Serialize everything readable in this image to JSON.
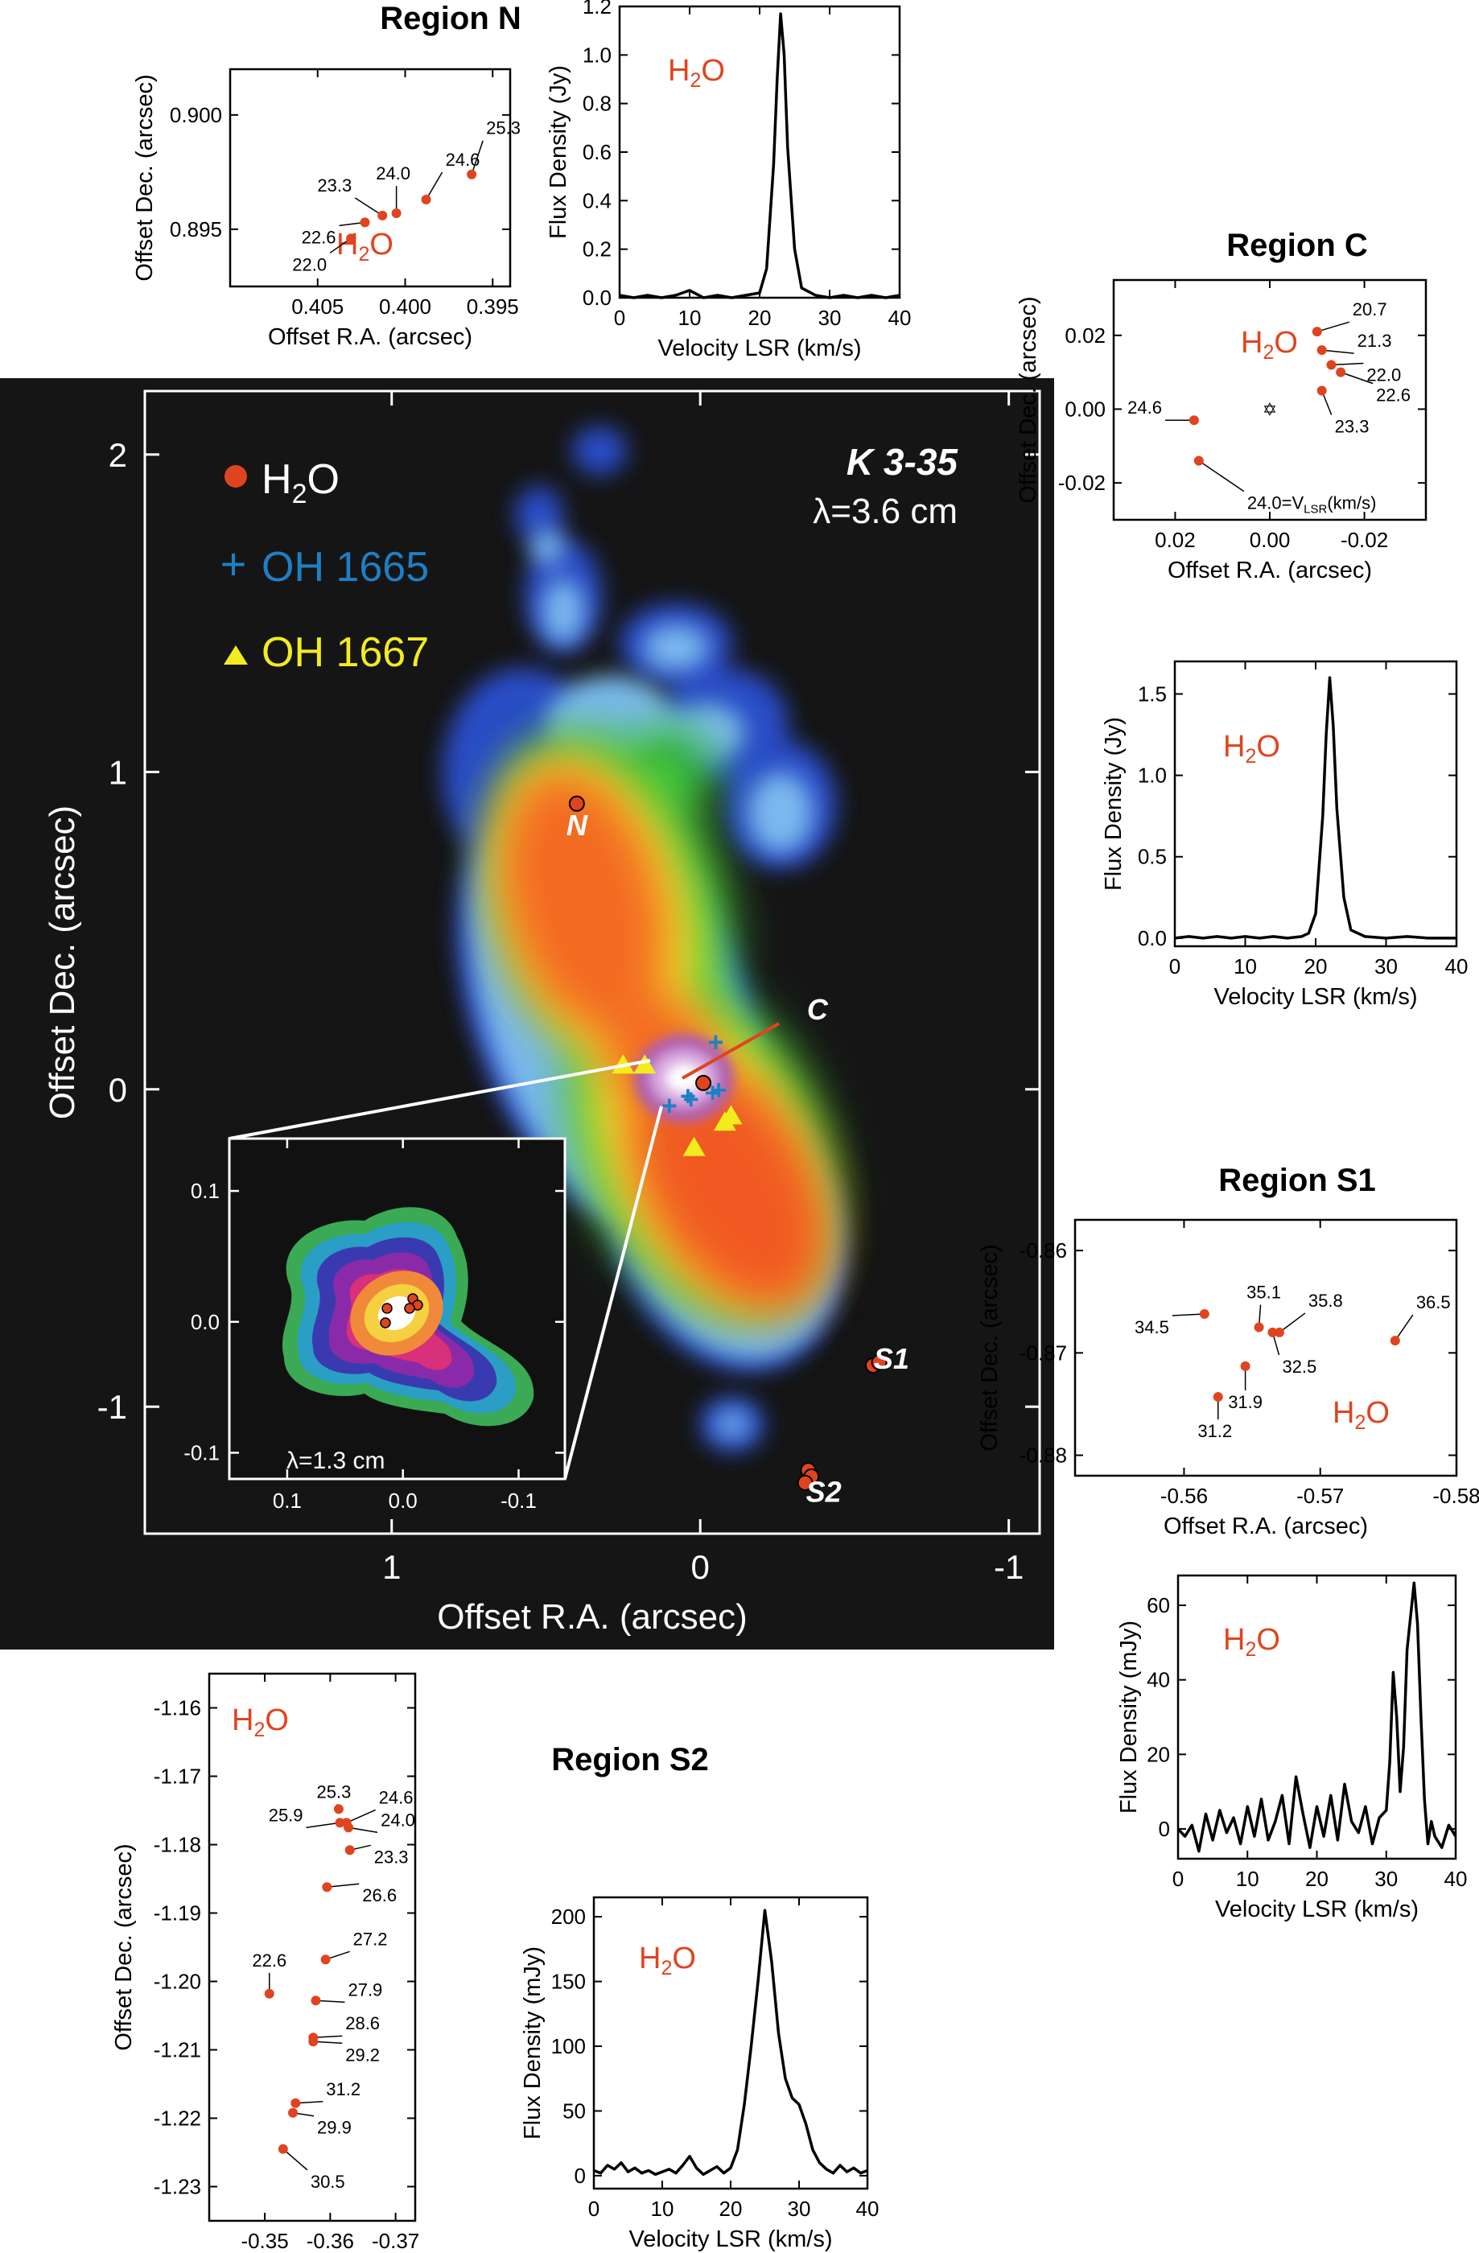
{
  "panels": {
    "region_n_title": "Region N",
    "region_c_title": "Region C",
    "region_s1_title": "Region S1",
    "region_s2_title": "Region S2"
  },
  "main_map": {
    "source_name": "K 3-35",
    "wavelength": "λ=3.6 cm",
    "xlabel": "Offset R.A. (arcsec)",
    "ylabel": "Offset Dec. (arcsec)",
    "xlim": [
      1.8,
      -1.1
    ],
    "ylim": [
      -1.4,
      2.2
    ],
    "xticks": [
      "1",
      "0",
      "-1"
    ],
    "yticks": [
      "2",
      "1",
      "0",
      "-1"
    ],
    "legend": [
      {
        "label": "H2O",
        "marker": "circle",
        "color": "#e0441f"
      },
      {
        "label": "OH 1665",
        "marker": "plus",
        "color": "#1f7fc4"
      },
      {
        "label": "OH 1667",
        "marker": "triangle",
        "color": "#f2ec1f"
      }
    ],
    "region_labels": [
      {
        "label": "N",
        "x": 0.4,
        "y": 0.8
      },
      {
        "label": "C",
        "x": -0.38,
        "y": 0.22
      },
      {
        "label": "S1",
        "x": -0.62,
        "y": -0.88
      },
      {
        "label": "S2",
        "x": -0.4,
        "y": -1.3
      }
    ],
    "h2o_points": [
      {
        "region": "N",
        "x": 0.4,
        "y": 0.9
      },
      {
        "region": "C",
        "x": -0.01,
        "y": 0.02
      },
      {
        "region": "S1",
        "x": -0.56,
        "y": -0.87
      },
      {
        "region": "S1",
        "x": -0.58,
        "y": -0.86
      },
      {
        "region": "S2",
        "x": -0.35,
        "y": -1.2
      },
      {
        "region": "S2",
        "x": -0.36,
        "y": -1.22
      },
      {
        "region": "S2",
        "x": -0.34,
        "y": -1.24
      }
    ],
    "oh1665_points": [
      [
        -0.05,
        0.15
      ],
      [
        0.1,
        -0.05
      ],
      [
        -0.04,
        -0.01
      ],
      [
        -0.06,
        0.0
      ],
      [
        0.04,
        -0.02
      ],
      [
        0.03,
        -0.03
      ]
    ],
    "oh1667_points": [
      [
        0.25,
        0.08
      ],
      [
        0.18,
        0.08
      ],
      [
        0.02,
        -0.18
      ],
      [
        -0.08,
        -0.1
      ],
      [
        -0.1,
        -0.08
      ]
    ],
    "inset": {
      "wavelength": "λ=1.3 cm",
      "xlim": [
        0.15,
        -0.14
      ],
      "ylim": [
        -0.12,
        0.14
      ],
      "xticks": [
        "0.1",
        "0.0",
        "-0.1"
      ],
      "yticks": [
        "0.1",
        "0.0",
        "-0.1"
      ]
    }
  },
  "chart_data": [
    {
      "type": "scatter",
      "id": "region-n-positions",
      "title": "Region N",
      "xlabel": "Offset R.A. (arcsec)",
      "ylabel": "Offset Dec. (arcsec)",
      "annotation": "H2O",
      "xlim": [
        0.41,
        0.394
      ],
      "ylim": [
        0.8925,
        0.902
      ],
      "xticks": [
        0.405,
        0.4,
        0.395
      ],
      "xtick_labels": [
        "0.405",
        "0.400",
        "0.395"
      ],
      "yticks": [
        0.895,
        0.9
      ],
      "ytick_labels": [
        "0.895",
        "0.900"
      ],
      "points": [
        {
          "x": 0.4031,
          "y": 0.8946,
          "label": "22.0"
        },
        {
          "x": 0.4023,
          "y": 0.8953,
          "label": "22.6"
        },
        {
          "x": 0.4013,
          "y": 0.8956,
          "label": "23.3"
        },
        {
          "x": 0.4005,
          "y": 0.8957,
          "label": "24.0"
        },
        {
          "x": 0.3988,
          "y": 0.8963,
          "label": "24.6"
        },
        {
          "x": 0.3962,
          "y": 0.8974,
          "label": "25.3"
        }
      ]
    },
    {
      "type": "line",
      "id": "region-n-spectrum",
      "xlabel": "Velocity LSR (km/s)",
      "ylabel": "Flux Density (Jy)",
      "annotation": "H2O",
      "xlim": [
        0,
        40
      ],
      "ylim": [
        0,
        1.2
      ],
      "xticks": [
        0,
        10,
        20,
        30,
        40
      ],
      "xtick_labels": [
        "0",
        "10",
        "20",
        "30",
        "40"
      ],
      "yticks": [
        0,
        0.2,
        0.4,
        0.6,
        0.8,
        1.0,
        1.2
      ],
      "ytick_labels": [
        "0.0",
        "0.2",
        "0.4",
        "0.6",
        "0.8",
        "1.0",
        "1.2"
      ],
      "x": [
        0,
        2,
        4,
        6,
        8,
        10,
        12,
        14,
        16,
        18,
        20,
        21,
        22,
        22.5,
        23,
        23.5,
        24,
        25,
        26,
        28,
        30,
        32,
        34,
        36,
        38,
        40
      ],
      "y": [
        0.01,
        0.0,
        0.01,
        0.0,
        0.01,
        0.03,
        0.0,
        0.01,
        0.0,
        0.01,
        0.02,
        0.12,
        0.55,
        0.9,
        1.17,
        1.0,
        0.62,
        0.2,
        0.04,
        0.01,
        0.0,
        0.01,
        0.0,
        0.01,
        0.0,
        0.01
      ]
    },
    {
      "type": "scatter",
      "id": "region-c-positions",
      "title": "Region C",
      "xlabel": "Offset R.A. (arcsec)",
      "ylabel": "Offset Dec. (arcsec)",
      "annotation": "H2O",
      "center_marker": "star",
      "xlim": [
        0.033,
        -0.033
      ],
      "ylim": [
        -0.03,
        0.035
      ],
      "xticks": [
        0.02,
        0.0,
        -0.02
      ],
      "xtick_labels": [
        "0.02",
        "0.00",
        "-0.02"
      ],
      "yticks": [
        0.02,
        0.0,
        -0.02
      ],
      "ytick_labels": [
        "0.02",
        "0.00",
        "-0.02"
      ],
      "points": [
        {
          "x": -0.01,
          "y": 0.021,
          "label": "20.7"
        },
        {
          "x": -0.011,
          "y": 0.016,
          "label": "21.3"
        },
        {
          "x": -0.013,
          "y": 0.012,
          "label": "22.0"
        },
        {
          "x": -0.015,
          "y": 0.01,
          "label": "22.6"
        },
        {
          "x": -0.011,
          "y": 0.005,
          "label": "23.3"
        },
        {
          "x": 0.016,
          "y": -0.003,
          "label": "24.6"
        },
        {
          "x": 0.015,
          "y": -0.014,
          "label": "24.0=V"
        }
      ]
    },
    {
      "type": "line",
      "id": "region-c-spectrum",
      "xlabel": "Velocity LSR (km/s)",
      "ylabel": "Flux Density (Jy)",
      "annotation": "H2O",
      "xlim": [
        0,
        40
      ],
      "ylim": [
        -0.05,
        1.7
      ],
      "xticks": [
        0,
        10,
        20,
        30,
        40
      ],
      "xtick_labels": [
        "0",
        "10",
        "20",
        "30",
        "40"
      ],
      "yticks": [
        0,
        0.5,
        1.0,
        1.5
      ],
      "ytick_labels": [
        "0.0",
        "0.5",
        "1.0",
        "1.5"
      ],
      "x": [
        0,
        2,
        4,
        6,
        8,
        10,
        12,
        14,
        16,
        18,
        19,
        20,
        21,
        21.5,
        22,
        22.5,
        23,
        24,
        25,
        27,
        30,
        33,
        36,
        40
      ],
      "y": [
        0.0,
        0.01,
        0.0,
        0.01,
        0.0,
        0.01,
        0.0,
        0.01,
        0.0,
        0.01,
        0.03,
        0.15,
        0.75,
        1.25,
        1.6,
        1.3,
        0.8,
        0.25,
        0.05,
        0.01,
        0.0,
        0.01,
        0.0,
        0.0
      ]
    },
    {
      "type": "scatter",
      "id": "region-s1-positions",
      "title": "Region S1",
      "xlabel": "Offset R.A. (arcsec)",
      "ylabel": "Offset Dec. (arcsec)",
      "annotation": "H2O",
      "xlim": [
        -0.552,
        -0.58
      ],
      "ylim": [
        -0.882,
        -0.857
      ],
      "xticks": [
        -0.56,
        -0.57,
        -0.58
      ],
      "xtick_labels": [
        "-0.56",
        "-0.57",
        "-0.58"
      ],
      "yticks": [
        -0.86,
        -0.87,
        -0.88
      ],
      "ytick_labels": [
        "-0.86",
        "-0.87",
        "-0.88"
      ],
      "points": [
        {
          "x": -0.5615,
          "y": -0.8662,
          "label": "34.5"
        },
        {
          "x": -0.5655,
          "y": -0.8675,
          "label": "35.1"
        },
        {
          "x": -0.567,
          "y": -0.868,
          "label": "35.8"
        },
        {
          "x": -0.5665,
          "y": -0.868,
          "label": "32.5"
        },
        {
          "x": -0.5755,
          "y": -0.8688,
          "label": "36.5"
        },
        {
          "x": -0.5645,
          "y": -0.8713,
          "label": "31.9"
        },
        {
          "x": -0.5625,
          "y": -0.8743,
          "label": "31.2"
        }
      ]
    },
    {
      "type": "line",
      "id": "region-s1-spectrum",
      "xlabel": "Velocity LSR (km/s)",
      "ylabel": "Flux Density (mJy)",
      "annotation": "H2O",
      "xlim": [
        0,
        40
      ],
      "ylim": [
        -8,
        68
      ],
      "xticks": [
        0,
        10,
        20,
        30,
        40
      ],
      "xtick_labels": [
        "0",
        "10",
        "20",
        "30",
        "40"
      ],
      "yticks": [
        0,
        20,
        40,
        60
      ],
      "ytick_labels": [
        "0",
        "20",
        "40",
        "60"
      ],
      "x": [
        0,
        1,
        2,
        3,
        4,
        5,
        6,
        7,
        8,
        9,
        10,
        11,
        12,
        13,
        14,
        15,
        16,
        17,
        18,
        19,
        20,
        21,
        22,
        23,
        24,
        25,
        26,
        27,
        28,
        29,
        30,
        30.5,
        31,
        31.5,
        32,
        32.5,
        33,
        34,
        34.5,
        35,
        35.5,
        36,
        36.5,
        37,
        38,
        39,
        40
      ],
      "y": [
        0,
        -2,
        1,
        -6,
        4,
        -3,
        5,
        -1,
        3,
        -4,
        6,
        -2,
        8,
        -3,
        2,
        9,
        -4,
        14,
        4,
        -5,
        6,
        -2,
        9,
        -3,
        12,
        2,
        -1,
        6,
        -4,
        3,
        5,
        18,
        42,
        30,
        10,
        22,
        48,
        66,
        55,
        30,
        8,
        -4,
        2,
        -2,
        -5,
        1,
        -2
      ]
    },
    {
      "type": "scatter",
      "id": "region-s2-positions",
      "title": "Region S2",
      "xlabel": "Offset R.A. (arcsec)",
      "ylabel": "Offset Dec. (arcsec)",
      "annotation": "H2O",
      "xlim": [
        -0.3415,
        -0.373
      ],
      "ylim": [
        -1.235,
        -1.155
      ],
      "xticks": [
        -0.35,
        -0.36,
        -0.37
      ],
      "xtick_labels": [
        "-0.35",
        "-0.36",
        "-0.37"
      ],
      "yticks": [
        -1.16,
        -1.17,
        -1.18,
        -1.19,
        -1.2,
        -1.21,
        -1.22,
        -1.23
      ],
      "ytick_labels": [
        "-1.16",
        "-1.17",
        "-1.18",
        "-1.19",
        "-1.20",
        "-1.21",
        "-1.22",
        "-1.23"
      ],
      "points": [
        {
          "x": -0.3613,
          "y": -1.1748,
          "label": "25.3"
        },
        {
          "x": -0.3625,
          "y": -1.1768,
          "label": "24.6"
        },
        {
          "x": -0.3615,
          "y": -1.1768,
          "label": "25.9"
        },
        {
          "x": -0.3628,
          "y": -1.1775,
          "label": "24.0"
        },
        {
          "x": -0.363,
          "y": -1.1808,
          "label": "23.3"
        },
        {
          "x": -0.3595,
          "y": -1.1862,
          "label": "26.6"
        },
        {
          "x": -0.3507,
          "y": -1.2018,
          "label": "22.6"
        },
        {
          "x": -0.3593,
          "y": -1.1968,
          "label": "27.2"
        },
        {
          "x": -0.3578,
          "y": -1.2028,
          "label": "27.9"
        },
        {
          "x": -0.3574,
          "y": -1.2082,
          "label": "28.6"
        },
        {
          "x": -0.3574,
          "y": -1.2088,
          "label": "29.2"
        },
        {
          "x": -0.3547,
          "y": -1.2178,
          "label": "31.2"
        },
        {
          "x": -0.3543,
          "y": -1.2192,
          "label": "29.9"
        },
        {
          "x": -0.3528,
          "y": -1.2245,
          "label": "30.5"
        }
      ]
    },
    {
      "type": "line",
      "id": "region-s2-spectrum",
      "xlabel": "Velocity LSR (km/s)",
      "ylabel": "Flux Density (mJy)",
      "annotation": "H2O",
      "xlim": [
        0,
        40
      ],
      "ylim": [
        -10,
        215
      ],
      "xticks": [
        0,
        10,
        20,
        30,
        40
      ],
      "xtick_labels": [
        "0",
        "10",
        "20",
        "30",
        "40"
      ],
      "yticks": [
        0,
        50,
        100,
        150,
        200
      ],
      "ytick_labels": [
        "0",
        "50",
        "100",
        "150",
        "200"
      ],
      "x": [
        0,
        1,
        2,
        3,
        4,
        5,
        6,
        7,
        8,
        9,
        10,
        11,
        12,
        13,
        14,
        15,
        16,
        17,
        18,
        19,
        20,
        21,
        22,
        23,
        24,
        25,
        26,
        27,
        28,
        29,
        30,
        31,
        32,
        33,
        34,
        35,
        36,
        37,
        38,
        39,
        40
      ],
      "y": [
        4,
        2,
        8,
        5,
        10,
        3,
        6,
        2,
        4,
        1,
        3,
        5,
        2,
        8,
        15,
        6,
        1,
        4,
        7,
        2,
        6,
        20,
        55,
        100,
        150,
        205,
        165,
        110,
        75,
        60,
        55,
        40,
        20,
        10,
        5,
        2,
        8,
        3,
        6,
        2,
        4
      ]
    }
  ]
}
